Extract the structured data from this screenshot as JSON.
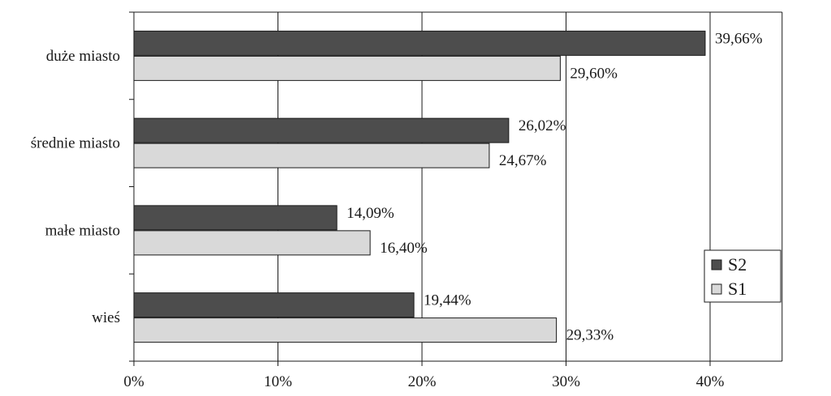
{
  "chart_data": {
    "type": "bar",
    "orientation": "horizontal",
    "categories": [
      "duże miasto",
      "średnie miasto",
      "małe miasto",
      "wieś"
    ],
    "series": [
      {
        "name": "S2",
        "values": [
          39.66,
          26.02,
          14.09,
          19.44
        ],
        "labels": [
          "39,66%",
          "26,02%",
          "14,09%",
          "19,44%"
        ],
        "color": "#4d4d4d"
      },
      {
        "name": "S1",
        "values": [
          29.6,
          24.67,
          16.4,
          29.33
        ],
        "labels": [
          "29,60%",
          "24,67%",
          "16,40%",
          "29,33%"
        ],
        "color": "#d9d9d9"
      }
    ],
    "xticks": [
      "0%",
      "10%",
      "20%",
      "30%",
      "40%"
    ],
    "xlim": [
      0,
      45
    ],
    "grid": true,
    "legend_position": "right"
  }
}
